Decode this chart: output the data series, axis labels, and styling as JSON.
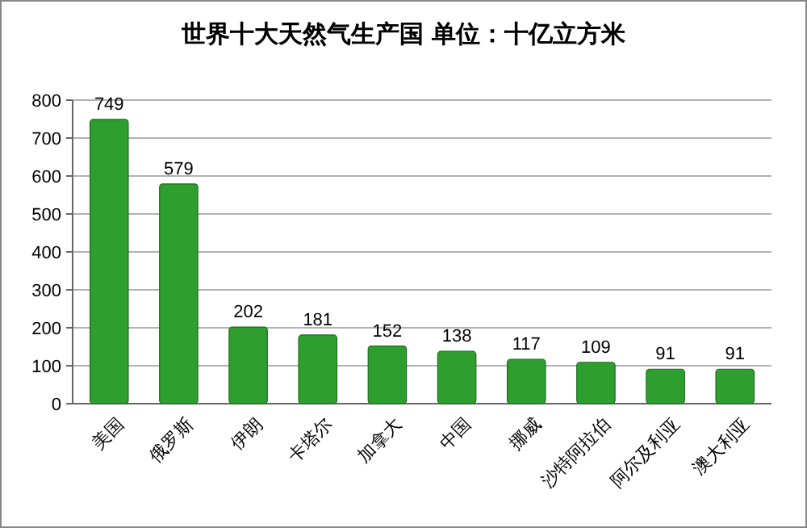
{
  "chart_data": {
    "type": "bar",
    "title": "世界十大天然气生产国 单位：十亿立方米",
    "categories": [
      "美国",
      "俄罗斯",
      "伊朗",
      "卡塔尔",
      "加拿大",
      "中国",
      "挪威",
      "沙特阿拉伯",
      "阿尔及利亚",
      "澳大利亚"
    ],
    "values": [
      749,
      579,
      202,
      181,
      152,
      138,
      117,
      109,
      91,
      91
    ],
    "color": "#2e9e2e",
    "ylim": [
      0,
      800
    ],
    "yticks": [
      0,
      100,
      200,
      300,
      400,
      500,
      600,
      700,
      800
    ],
    "grid": "y",
    "data_labels": true
  }
}
